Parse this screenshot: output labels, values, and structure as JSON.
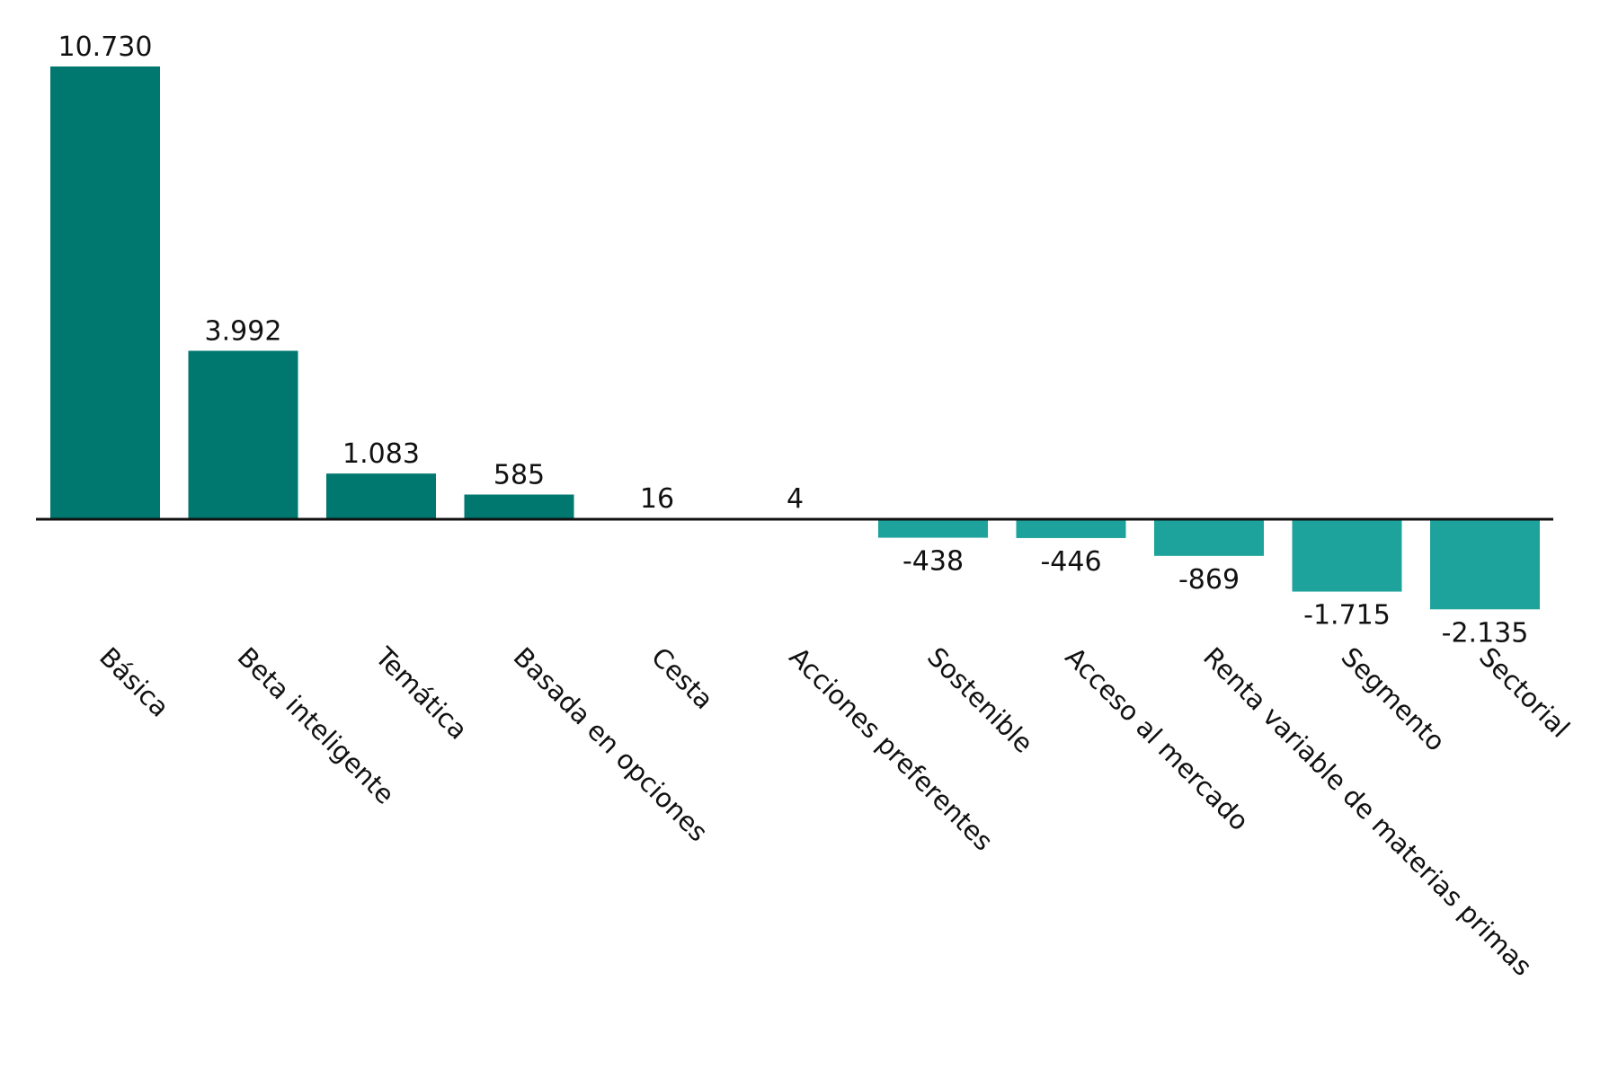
{
  "chart_data": {
    "type": "bar",
    "categories": [
      "Básica",
      "Beta inteligente",
      "Temática",
      "Basada en opciones",
      "Cesta",
      "Acciones preferentes",
      "Sostenible",
      "Acceso al mercado",
      "Renta variable de materias primas",
      "Segmento",
      "Sectorial"
    ],
    "values": [
      10730,
      3992,
      1083,
      585,
      16,
      4,
      -438,
      -446,
      -869,
      -1715,
      -2135
    ],
    "value_labels": [
      "10.730",
      "3.992",
      "1.083",
      "585",
      "16",
      "4",
      "-438",
      "-446",
      "-869",
      "-1.715",
      "-2.135"
    ],
    "title": "",
    "xlabel": "",
    "ylabel": "",
    "ylim": [
      -2135,
      10730
    ],
    "grid": false,
    "legend": "none",
    "colors": {
      "positive": "#00786f",
      "negative": "#1da39b",
      "axis": "#111111"
    }
  }
}
